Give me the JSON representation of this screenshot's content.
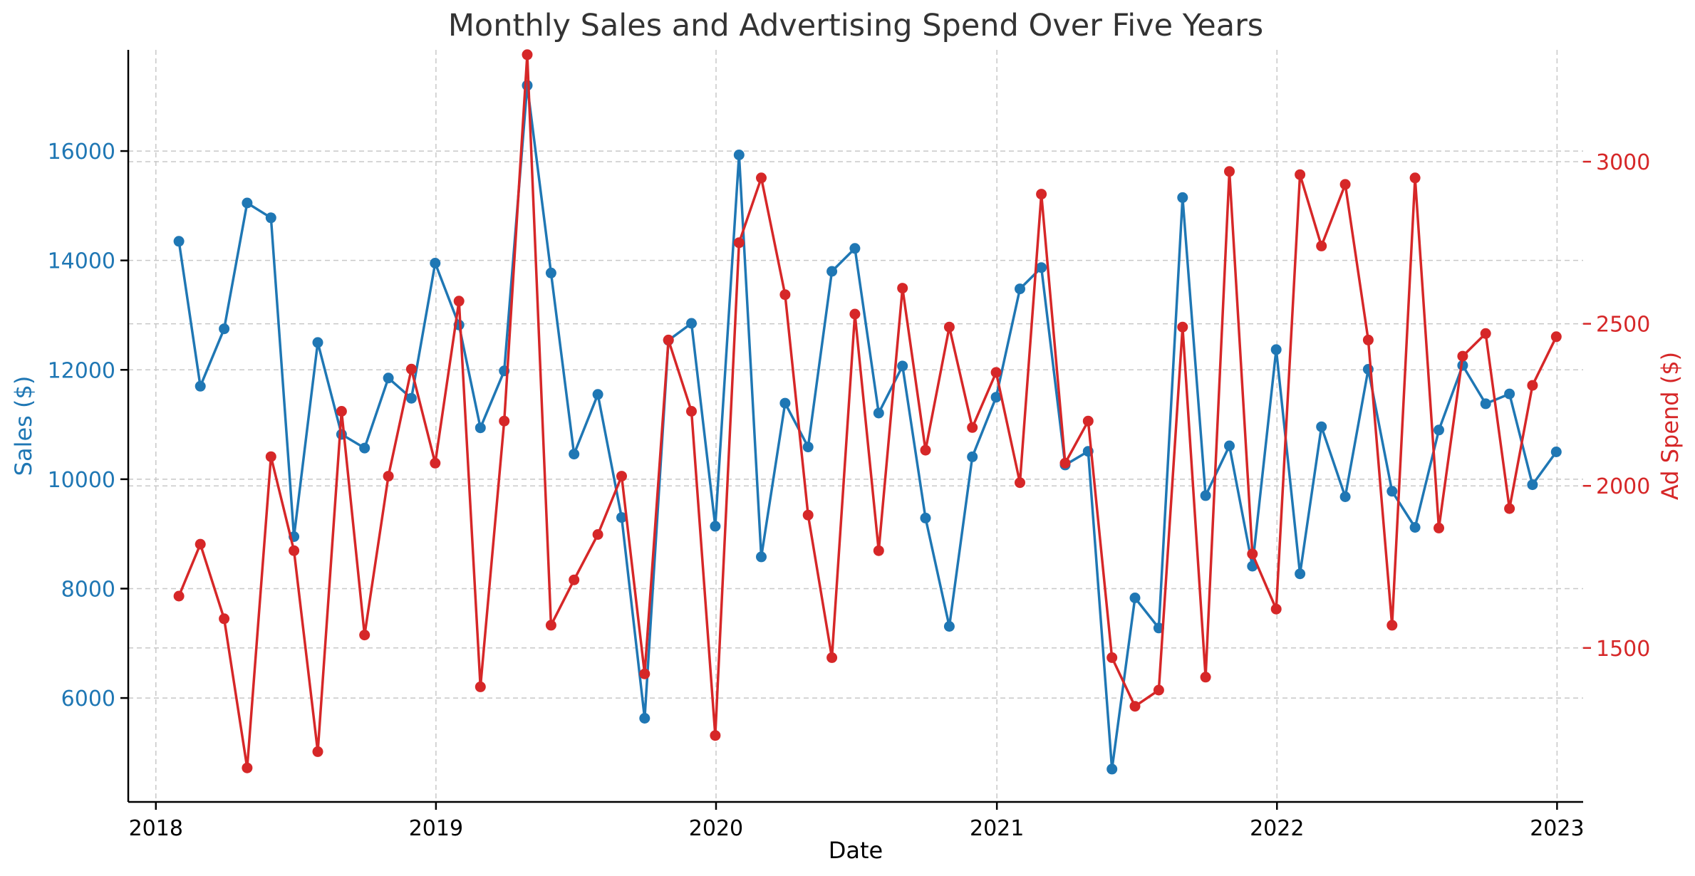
{
  "chart_data": {
    "type": "line",
    "title": "Monthly Sales and Advertising Spend Over Five Years",
    "xlabel": "Date",
    "ylabel_left": "Sales ($)",
    "ylabel_right": "Ad Spend ($)",
    "x": [
      "2018-01-31",
      "2018-02-28",
      "2018-03-31",
      "2018-04-30",
      "2018-05-31",
      "2018-06-30",
      "2018-07-31",
      "2018-08-31",
      "2018-09-30",
      "2018-10-31",
      "2018-11-30",
      "2018-12-31",
      "2019-01-31",
      "2019-02-28",
      "2019-03-31",
      "2019-04-30",
      "2019-05-31",
      "2019-06-30",
      "2019-07-31",
      "2019-08-31",
      "2019-09-30",
      "2019-10-31",
      "2019-11-30",
      "2019-12-31",
      "2020-01-31",
      "2020-02-29",
      "2020-03-31",
      "2020-04-30",
      "2020-05-31",
      "2020-06-30",
      "2020-07-31",
      "2020-08-31",
      "2020-09-30",
      "2020-10-31",
      "2020-11-30",
      "2020-12-31",
      "2021-01-31",
      "2021-02-28",
      "2021-03-31",
      "2021-04-30",
      "2021-05-31",
      "2021-06-30",
      "2021-07-31",
      "2021-08-31",
      "2021-09-30",
      "2021-10-31",
      "2021-11-30",
      "2021-12-31",
      "2022-01-31",
      "2022-02-28",
      "2022-03-31",
      "2022-04-30",
      "2022-05-31",
      "2022-06-30",
      "2022-07-31",
      "2022-08-31",
      "2022-09-30",
      "2022-10-31",
      "2022-11-30",
      "2022-12-31"
    ],
    "xticks": [
      "2018",
      "2019",
      "2020",
      "2021",
      "2022",
      "2023"
    ],
    "xlim": [
      "2017-11-26",
      "2023-02-04"
    ],
    "series": [
      {
        "name": "Sales",
        "axis": "left",
        "color": "#1f77b4",
        "values": [
          14350,
          11700,
          12750,
          15050,
          14780,
          8950,
          12500,
          10820,
          10570,
          11850,
          11480,
          13950,
          12820,
          10940,
          11980,
          17200,
          13770,
          10460,
          11550,
          9300,
          5630,
          12540,
          12850,
          9140,
          15930,
          8580,
          11390,
          10590,
          13800,
          14220,
          11210,
          12070,
          9290,
          7310,
          10410,
          11500,
          13480,
          13870,
          10260,
          10510,
          4700,
          7830,
          7280,
          15150,
          9700,
          10610,
          8410,
          12370,
          8270,
          10960,
          9680,
          12010,
          9780,
          9120,
          10900,
          12080,
          11380,
          11560,
          9900,
          10500
        ]
      },
      {
        "name": "Ad Spend",
        "axis": "right",
        "color": "#d62728",
        "values": [
          1660,
          1820,
          1590,
          1130,
          2090,
          1800,
          1180,
          2230,
          1540,
          2030,
          2360,
          2070,
          2570,
          1380,
          2200,
          3330,
          1570,
          1710,
          1850,
          2030,
          1420,
          2450,
          2230,
          1230,
          2750,
          2950,
          2590,
          1910,
          1470,
          2530,
          1800,
          2610,
          2110,
          2490,
          2180,
          2350,
          2010,
          2900,
          2070,
          2200,
          1470,
          1320,
          1370,
          2490,
          1410,
          2970,
          1790,
          1620,
          2960,
          2740,
          2930,
          2450,
          1570,
          2950,
          1870,
          2400,
          2470,
          1930,
          2310,
          2460
        ]
      }
    ],
    "ylim_left": [
      4100,
      17850
    ],
    "ylim_right": [
      1025,
      3345
    ],
    "yticks_left": [
      6000,
      8000,
      10000,
      12000,
      14000,
      16000
    ],
    "yticks_right": [
      1500,
      2000,
      2500,
      3000
    ],
    "grid": true,
    "legend": "none"
  }
}
